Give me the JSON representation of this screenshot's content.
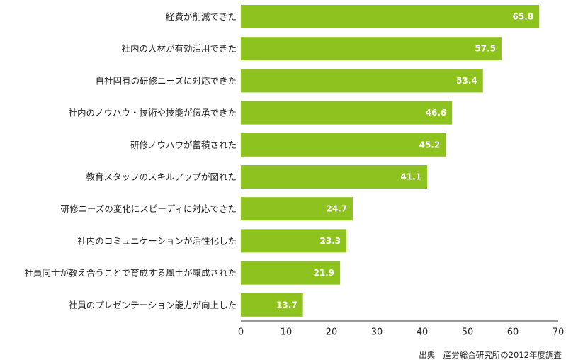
{
  "chart_data": {
    "type": "bar",
    "orientation": "horizontal",
    "categories": [
      "経費が削減できた",
      "社内の人材が有効活用できた",
      "自社固有の研修ニーズに対応できた",
      "社内のノウハウ・技術や技能が伝承できた",
      "研修ノウハウが蓄積された",
      "教育スタッフのスキルアップが図れた",
      "研修ニーズの変化にスピーディに対応できた",
      "社内のコミュニケーションが活性化した",
      "社員同士が教え合うことで育成する風土が醸成された",
      "社員のプレゼンテーション能力が向上した"
    ],
    "values": [
      65.8,
      57.5,
      53.4,
      46.6,
      45.2,
      41.1,
      24.7,
      23.3,
      21.9,
      13.7
    ],
    "value_labels": [
      "65.8",
      "57.5",
      "53.4",
      "46.6",
      "45.2",
      "41.1",
      "24.7",
      "23.3",
      "21.9",
      "13.7"
    ],
    "xlim": [
      0,
      70
    ],
    "xticks": [
      "0",
      "10",
      "20",
      "30",
      "40",
      "50",
      "60",
      "70"
    ],
    "bar_color": "#8dc21f",
    "axis_color": "#333333",
    "grid": false,
    "title": "",
    "xlabel": "",
    "ylabel": ""
  },
  "source_note": "出典　産労総合研究所の2012年度調査"
}
